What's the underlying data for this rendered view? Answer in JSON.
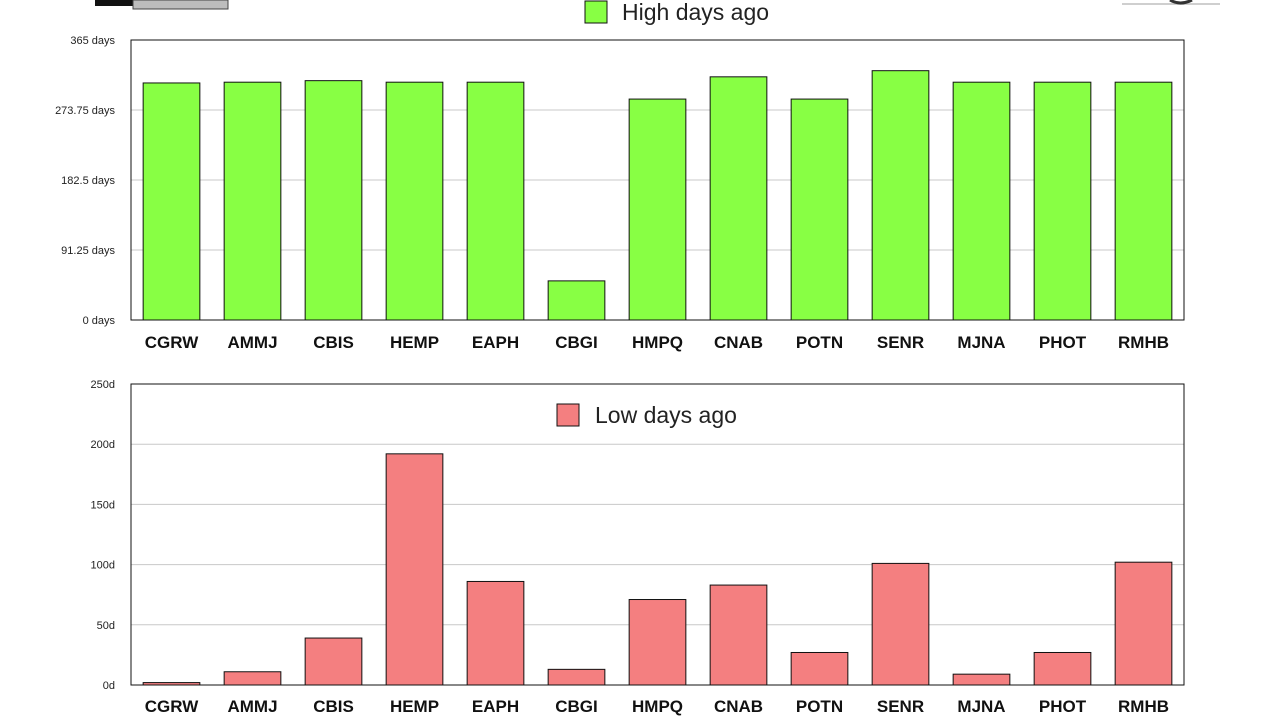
{
  "chart_data": [
    {
      "type": "bar",
      "categories": [
        "CGRW",
        "AMMJ",
        "CBIS",
        "HEMP",
        "EAPH",
        "CBGI",
        "HMPQ",
        "CNAB",
        "POTN",
        "SENR",
        "MJNA",
        "PHOT",
        "RMHB"
      ],
      "series": [
        {
          "name": "High days ago",
          "values": [
            309,
            310,
            312,
            310,
            310,
            51,
            288,
            317,
            288,
            325,
            310,
            310,
            310
          ]
        }
      ],
      "yticks": [
        "0 days",
        "91.25 days",
        "182.5 days",
        "273.75 days",
        "365 days"
      ],
      "ylim": [
        0,
        365
      ],
      "grid": true,
      "legend": "top-center",
      "color": "#88ff44"
    },
    {
      "type": "bar",
      "categories": [
        "CGRW",
        "AMMJ",
        "CBIS",
        "HEMP",
        "EAPH",
        "CBGI",
        "HMPQ",
        "CNAB",
        "POTN",
        "SENR",
        "MJNA",
        "PHOT",
        "RMHB"
      ],
      "series": [
        {
          "name": "Low days ago",
          "values": [
            2,
            11,
            39,
            192,
            86,
            13,
            71,
            83,
            27,
            101,
            9,
            27,
            102
          ]
        }
      ],
      "yticks": [
        "0d",
        "50d",
        "100d",
        "150d",
        "200d",
        "250d"
      ],
      "ylim": [
        0,
        250
      ],
      "grid": true,
      "legend": "top-center",
      "color": "#f47f80"
    }
  ]
}
